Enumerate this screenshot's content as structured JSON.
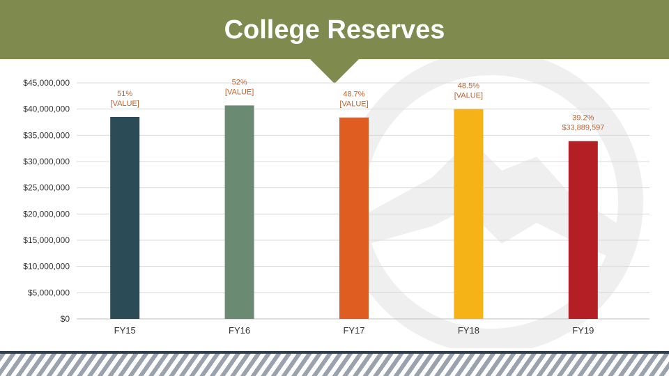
{
  "header": {
    "title": "College Reserves"
  },
  "colors": {
    "header_band": "#7f8a4f",
    "gridline": "#d9d9d9",
    "data_label": "#c0602a"
  },
  "chart_data": {
    "type": "bar",
    "title": "College Reserves",
    "categories": [
      "FY15",
      "FY16",
      "FY17",
      "FY18",
      "FY19"
    ],
    "values": [
      38500000,
      40700000,
      38400000,
      40000000,
      33889597
    ],
    "data_labels": [
      [
        "51%",
        "[VALUE]"
      ],
      [
        "52%",
        "[VALUE]"
      ],
      [
        "48.7%",
        "[VALUE]"
      ],
      [
        "48.5%",
        "[VALUE]"
      ],
      [
        "39.2%",
        "$33,889,597"
      ]
    ],
    "bar_colors": [
      "#2b4c57",
      "#6b8a72",
      "#e05d22",
      "#f5b318",
      "#b31f24"
    ],
    "ylim": [
      0,
      45000000
    ],
    "y_ticks": [
      0,
      5000000,
      10000000,
      15000000,
      20000000,
      25000000,
      30000000,
      35000000,
      40000000,
      45000000
    ],
    "y_tick_labels": [
      "$0",
      "$5,000,000",
      "$10,000,000",
      "$15,000,000",
      "$20,000,000",
      "$25,000,000",
      "$30,000,000",
      "$35,000,000",
      "$40,000,000",
      "$45,000,000"
    ],
    "grid": true,
    "xlabel": "",
    "ylabel": ""
  }
}
